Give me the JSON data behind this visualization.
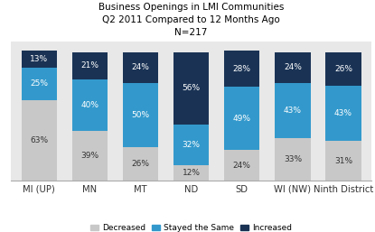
{
  "title": "Business Openings in LMI Communities\nQ2 2011 Compared to 12 Months Ago\nN=217",
  "categories": [
    "MI (UP)",
    "MN",
    "MT",
    "ND",
    "SD",
    "WI (NW)",
    "Ninth District"
  ],
  "decreased": [
    63,
    39,
    26,
    12,
    24,
    33,
    31
  ],
  "stayed_same": [
    25,
    40,
    50,
    32,
    49,
    43,
    43
  ],
  "increased": [
    13,
    21,
    24,
    56,
    28,
    24,
    26
  ],
  "color_decreased": "#c8c8c8",
  "color_stayed": "#3399cc",
  "color_increased": "#1a3355",
  "legend_labels": [
    "Decreased",
    "Stayed the Same",
    "Increased"
  ],
  "bar_width": 0.7,
  "background_color": "#ffffff",
  "plot_bg_color": "#e8e8e8",
  "title_fontsize": 7.5,
  "label_fontsize": 6.5,
  "tick_fontsize": 7.2
}
